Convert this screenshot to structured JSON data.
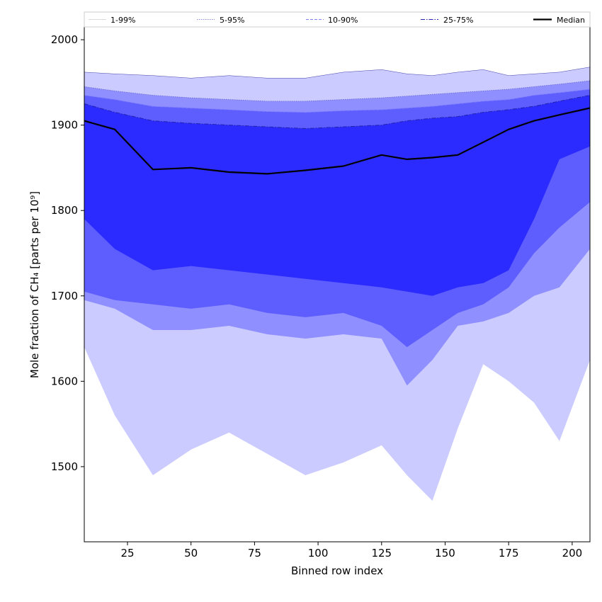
{
  "chart_data": {
    "type": "area",
    "title": "",
    "xlabel": "Binned row index",
    "ylabel": "Mole fraction of CH₄ [parts per 10⁹]",
    "xlim": [
      8,
      207
    ],
    "ylim": [
      1412,
      2015
    ],
    "x_ticks": [
      25,
      50,
      75,
      100,
      125,
      150,
      175,
      200
    ],
    "y_ticks": [
      1500,
      1600,
      1700,
      1800,
      1900,
      2000
    ],
    "grid": false,
    "legend_position": "top",
    "legend": [
      "1-99%",
      "5-95%",
      "10-90%",
      "25-75%",
      "Median"
    ],
    "x": [
      8,
      20,
      35,
      50,
      65,
      80,
      95,
      110,
      125,
      135,
      145,
      155,
      165,
      175,
      185,
      195,
      207
    ],
    "percentiles": {
      "p1": [
        1640,
        1560,
        1490,
        1520,
        1540,
        1515,
        1490,
        1505,
        1525,
        1490,
        1460,
        1545,
        1620,
        1600,
        1575,
        1530,
        1625
      ],
      "p5": [
        1695,
        1685,
        1660,
        1660,
        1665,
        1655,
        1650,
        1655,
        1650,
        1595,
        1625,
        1665,
        1670,
        1680,
        1700,
        1710,
        1755
      ],
      "p10": [
        1705,
        1695,
        1690,
        1685,
        1690,
        1680,
        1675,
        1680,
        1665,
        1640,
        1660,
        1680,
        1690,
        1710,
        1750,
        1780,
        1810
      ],
      "p25": [
        1790,
        1755,
        1730,
        1735,
        1730,
        1725,
        1720,
        1715,
        1710,
        1705,
        1700,
        1710,
        1715,
        1730,
        1790,
        1860,
        1875
      ],
      "p75": [
        1925,
        1915,
        1905,
        1902,
        1900,
        1898,
        1896,
        1898,
        1900,
        1905,
        1908,
        1910,
        1915,
        1918,
        1922,
        1928,
        1935
      ],
      "p90": [
        1935,
        1930,
        1922,
        1920,
        1918,
        1916,
        1915,
        1917,
        1918,
        1920,
        1922,
        1925,
        1928,
        1930,
        1935,
        1938,
        1942
      ],
      "p95": [
        1945,
        1940,
        1935,
        1932,
        1930,
        1928,
        1928,
        1930,
        1932,
        1934,
        1936,
        1938,
        1940,
        1942,
        1945,
        1948,
        1952
      ],
      "p99": [
        1962,
        1960,
        1958,
        1955,
        1958,
        1955,
        1955,
        1962,
        1965,
        1960,
        1958,
        1962,
        1965,
        1958,
        1960,
        1962,
        1968
      ]
    },
    "median": [
      1905,
      1895,
      1848,
      1850,
      1845,
      1843,
      1847,
      1852,
      1865,
      1860,
      1862,
      1865,
      1880,
      1895,
      1905,
      1912,
      1920
    ],
    "colors": {
      "band_1_99": "#cbcbff",
      "band_5_95": "#8f8fff",
      "band_10_90": "#5e5eff",
      "band_25_75": "#2b2bff",
      "median": "#000000",
      "boundary_5_95": "#6666cc",
      "boundary_10_90": "#8080ff",
      "boundary_25_75": "#2222aa"
    }
  }
}
